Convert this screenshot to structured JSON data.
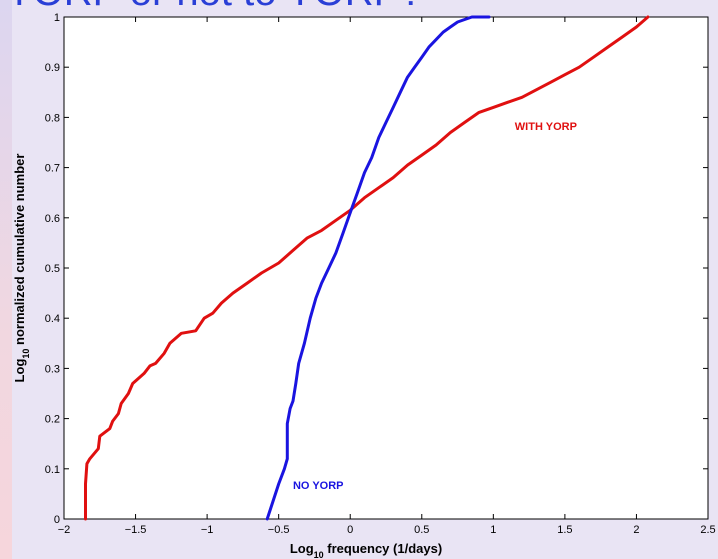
{
  "slide": {
    "title": "YORP or not to YORP?"
  },
  "chart_data": {
    "type": "line",
    "title": "",
    "xlabel_main": "Log",
    "xlabel_sub": "10",
    "xlabel_rest": " frequency (1/days)",
    "ylabel_main": "Log",
    "ylabel_sub": "10",
    "ylabel_rest": " normalized cumulative number",
    "xlim": [
      -2,
      2.5
    ],
    "ylim": [
      0,
      1
    ],
    "xticks": [
      -2,
      -1.5,
      -1,
      -0.5,
      0,
      0.5,
      1,
      1.5,
      2,
      2.5
    ],
    "xtick_labels": [
      "−2",
      "−1.5",
      "−1",
      "−0.5",
      "0",
      "0.5",
      "1",
      "1.5",
      "2",
      "2.5"
    ],
    "yticks": [
      0,
      0.1,
      0.2,
      0.3,
      0.4,
      0.5,
      0.6,
      0.7,
      0.8,
      0.9,
      1
    ],
    "ytick_labels": [
      "0",
      "0.1",
      "0.2",
      "0.3",
      "0.4",
      "0.5",
      "0.6",
      "0.7",
      "0.8",
      "0.9",
      "1"
    ],
    "grid": false,
    "series": [
      {
        "name": "WITH YORP",
        "color": "#e01010",
        "x": [
          -1.85,
          -1.85,
          -1.84,
          -1.82,
          -1.76,
          -1.75,
          -1.68,
          -1.66,
          -1.62,
          -1.6,
          -1.55,
          -1.52,
          -1.46,
          -1.44,
          -1.4,
          -1.36,
          -1.3,
          -1.26,
          -1.18,
          -1.08,
          -1.02,
          -0.96,
          -0.9,
          -0.82,
          -0.72,
          -0.62,
          -0.5,
          -0.4,
          -0.3,
          -0.2,
          -0.1,
          0.0,
          0.1,
          0.2,
          0.3,
          0.4,
          0.5,
          0.6,
          0.7,
          0.8,
          0.9,
          1.0,
          1.1,
          1.2,
          1.3,
          1.4,
          1.5,
          1.6,
          1.7,
          1.8,
          1.9,
          2.0,
          2.08
        ],
        "y": [
          0.0,
          0.07,
          0.11,
          0.12,
          0.14,
          0.165,
          0.18,
          0.195,
          0.21,
          0.23,
          0.25,
          0.27,
          0.285,
          0.29,
          0.305,
          0.31,
          0.33,
          0.35,
          0.37,
          0.375,
          0.4,
          0.41,
          0.43,
          0.45,
          0.47,
          0.49,
          0.51,
          0.535,
          0.56,
          0.575,
          0.595,
          0.615,
          0.64,
          0.66,
          0.68,
          0.705,
          0.725,
          0.745,
          0.77,
          0.79,
          0.81,
          0.82,
          0.83,
          0.84,
          0.855,
          0.87,
          0.885,
          0.9,
          0.92,
          0.94,
          0.96,
          0.98,
          1.0
        ]
      },
      {
        "name": "NO YORP",
        "color": "#1a14e0",
        "x": [
          -0.58,
          -0.5,
          -0.46,
          -0.44,
          -0.44,
          -0.42,
          -0.4,
          -0.38,
          -0.36,
          -0.32,
          -0.28,
          -0.24,
          -0.2,
          -0.15,
          -0.1,
          -0.05,
          0.0,
          0.05,
          0.1,
          0.15,
          0.2,
          0.25,
          0.3,
          0.35,
          0.4,
          0.45,
          0.5,
          0.55,
          0.6,
          0.65,
          0.7,
          0.75,
          0.8,
          0.85,
          0.9,
          0.97
        ],
        "y": [
          0.0,
          0.07,
          0.1,
          0.12,
          0.19,
          0.22,
          0.235,
          0.27,
          0.31,
          0.35,
          0.4,
          0.44,
          0.47,
          0.5,
          0.53,
          0.57,
          0.61,
          0.65,
          0.69,
          0.72,
          0.76,
          0.79,
          0.82,
          0.85,
          0.88,
          0.9,
          0.92,
          0.94,
          0.955,
          0.97,
          0.98,
          0.99,
          0.995,
          1.0,
          1.0,
          1.0
        ]
      }
    ],
    "annotations": [
      {
        "text": "WITH YORP",
        "x": 1.15,
        "y": 0.775,
        "color": "#e01010"
      },
      {
        "text": "NO YORP",
        "x": -0.4,
        "y": 0.06,
        "color": "#1a14e0"
      }
    ]
  }
}
